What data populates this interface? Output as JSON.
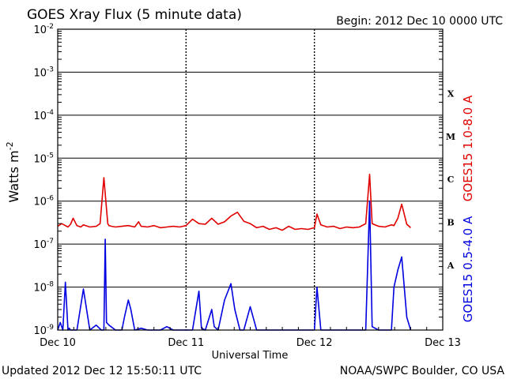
{
  "header": {
    "title": "GOES Xray Flux (5 minute data)",
    "begin": "Begin:  2012 Dec 10 0000 UTC"
  },
  "footer": {
    "updated": "Updated 2012 Dec 12 15:50:11 UTC",
    "credit": "NOAA/SWPC Boulder, CO USA"
  },
  "colors": {
    "long_channel": "#e00000",
    "short_channel": "#0000e0",
    "grid": "#000000"
  },
  "chart_data": {
    "type": "line",
    "title": "GOES Xray Flux (5 minute data)",
    "xlabel": "Universal Time",
    "ylabel": "Watts m",
    "ylabel_sup": "-2",
    "yscale": "log",
    "ylim": [
      1e-09,
      0.01
    ],
    "xlim": [
      0,
      3
    ],
    "x_unit": "days since 2012 Dec 10 0000 UTC",
    "x_ticks": [
      {
        "value": 0,
        "label": "Dec 10"
      },
      {
        "value": 1,
        "label": "Dec 11"
      },
      {
        "value": 2,
        "label": "Dec 12"
      },
      {
        "value": 3,
        "label": "Dec 13"
      }
    ],
    "y_ticks": [
      {
        "value": 1e-09,
        "base": "10",
        "exp": "-9"
      },
      {
        "value": 1e-08,
        "base": "10",
        "exp": "-8"
      },
      {
        "value": 1e-07,
        "base": "10",
        "exp": "-7"
      },
      {
        "value": 1e-06,
        "base": "10",
        "exp": "-6"
      },
      {
        "value": 1e-05,
        "base": "10",
        "exp": "-5"
      },
      {
        "value": 0.0001,
        "base": "10",
        "exp": "-4"
      },
      {
        "value": 0.001,
        "base": "10",
        "exp": "-3"
      },
      {
        "value": 0.01,
        "base": "10",
        "exp": "-2"
      }
    ],
    "flare_classes": [
      {
        "label": "A",
        "value": 3.2e-08
      },
      {
        "label": "B",
        "value": 3.2e-07
      },
      {
        "label": "C",
        "value": 3.2e-06
      },
      {
        "label": "M",
        "value": 3.2e-05
      },
      {
        "label": "X",
        "value": 0.00032
      }
    ],
    "grid": true,
    "legend": "right side, vertical",
    "series": [
      {
        "name": "GOES15 1.0-8.0 A",
        "color": "#e00000",
        "x": [
          0.0,
          0.03,
          0.06,
          0.08,
          0.1,
          0.12,
          0.15,
          0.18,
          0.2,
          0.25,
          0.3,
          0.33,
          0.36,
          0.39,
          0.4,
          0.42,
          0.45,
          0.5,
          0.55,
          0.6,
          0.63,
          0.65,
          0.7,
          0.75,
          0.8,
          0.85,
          0.9,
          0.95,
          1.0,
          1.05,
          1.1,
          1.15,
          1.2,
          1.25,
          1.3,
          1.35,
          1.4,
          1.45,
          1.5,
          1.55,
          1.6,
          1.65,
          1.7,
          1.75,
          1.8,
          1.85,
          1.9,
          1.95,
          2.0,
          2.02,
          2.05,
          2.1,
          2.15,
          2.2,
          2.25,
          2.3,
          2.35,
          2.4,
          2.43,
          2.45,
          2.5,
          2.55,
          2.6,
          2.62,
          2.65,
          2.68,
          2.72,
          2.75
        ],
        "y": [
          2.6e-07,
          3e-07,
          2.7e-07,
          2.5e-07,
          2.9e-07,
          4e-07,
          2.7e-07,
          2.5e-07,
          2.8e-07,
          2.5e-07,
          2.6e-07,
          3e-07,
          3.5e-06,
          3e-07,
          2.7e-07,
          2.6e-07,
          2.5e-07,
          2.6e-07,
          2.7e-07,
          2.5e-07,
          3.3e-07,
          2.6e-07,
          2.5e-07,
          2.7e-07,
          2.4e-07,
          2.5e-07,
          2.6e-07,
          2.5e-07,
          2.7e-07,
          3.8e-07,
          3e-07,
          2.9e-07,
          4e-07,
          2.9e-07,
          3.3e-07,
          4.5e-07,
          5.5e-07,
          3.4e-07,
          3e-07,
          2.4e-07,
          2.6e-07,
          2.2e-07,
          2.4e-07,
          2.1e-07,
          2.6e-07,
          2.2e-07,
          2.3e-07,
          2.2e-07,
          2.4e-07,
          5e-07,
          2.8e-07,
          2.5e-07,
          2.6e-07,
          2.3e-07,
          2.5e-07,
          2.4e-07,
          2.5e-07,
          3e-07,
          4.2e-06,
          3e-07,
          2.6e-07,
          2.5e-07,
          2.8e-07,
          2.7e-07,
          4e-07,
          8.5e-07,
          2.9e-07,
          2.4e-07
        ]
      },
      {
        "name": "GOES15 0.5-4.0 A",
        "color": "#0000e0",
        "x": [
          0.0,
          0.02,
          0.04,
          0.06,
          0.08,
          0.09,
          0.1,
          0.11,
          0.12,
          0.15,
          0.2,
          0.25,
          0.3,
          0.34,
          0.36,
          0.37,
          0.38,
          0.4,
          0.45,
          0.5,
          0.52,
          0.55,
          0.57,
          0.6,
          0.65,
          0.7,
          0.75,
          0.8,
          0.85,
          0.9,
          0.95,
          1.0,
          1.05,
          1.1,
          1.12,
          1.15,
          1.2,
          1.22,
          1.25,
          1.3,
          1.35,
          1.38,
          1.42,
          1.45,
          1.5,
          1.55,
          1.6,
          1.65,
          1.7,
          1.75,
          1.8,
          1.85,
          1.9,
          1.95,
          2.0,
          2.02,
          2.05,
          2.1,
          2.15,
          2.2,
          2.25,
          2.3,
          2.35,
          2.4,
          2.43,
          2.45,
          2.5,
          2.55,
          2.6,
          2.62,
          2.65,
          2.68,
          2.72,
          2.75
        ],
        "y": [
          1e-09,
          1.5e-09,
          1e-09,
          1.3e-08,
          1e-09,
          1.1e-09,
          1e-09,
          1e-09,
          1e-09,
          1e-09,
          9e-09,
          1e-09,
          1.3e-09,
          1e-09,
          1e-09,
          1.3e-07,
          1.5e-09,
          1.3e-09,
          1e-09,
          1e-09,
          2e-09,
          5e-09,
          3e-09,
          1e-09,
          1.1e-09,
          1e-09,
          1e-09,
          1e-09,
          1.2e-09,
          1e-09,
          1e-09,
          1e-09,
          1e-09,
          8e-09,
          1.1e-09,
          1e-09,
          3e-09,
          1.2e-09,
          1e-09,
          5e-09,
          1.2e-08,
          3e-09,
          1e-09,
          1e-09,
          3.5e-09,
          1e-09,
          1e-09,
          1e-09,
          1e-09,
          1e-09,
          1e-09,
          1e-09,
          1e-09,
          1e-09,
          1e-09,
          1e-08,
          1e-09,
          1e-09,
          1e-09,
          1e-09,
          1e-09,
          1e-09,
          1e-09,
          1e-09,
          1e-06,
          1.2e-09,
          1e-09,
          1e-09,
          1e-09,
          1e-08,
          2.5e-08,
          5e-08,
          2e-09,
          1e-09
        ]
      }
    ]
  }
}
